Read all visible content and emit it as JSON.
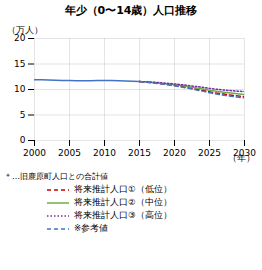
{
  "chart_data": {
    "type": "line",
    "title": "年少（0〜14歳）人口推移",
    "x_label": "（年）",
    "y_label": "（万人）",
    "annotations": [
      "＊…旧鹿原町人口との合計値"
    ],
    "x": [
      2000,
      2001,
      2002,
      2003,
      2004,
      2005,
      2006,
      2007,
      2008,
      2009,
      2010,
      2011,
      2012,
      2013,
      2014,
      2015,
      2016,
      2017,
      2018,
      2019,
      2020,
      2021,
      2022,
      2023,
      2024,
      2025,
      2026,
      2027,
      2028,
      2029,
      2030
    ],
    "series": [
      {
        "color": "#4472c4",
        "line_style": "solid",
        "values": [
          11.9,
          11.9,
          11.85,
          11.8,
          11.78,
          11.75,
          11.72,
          11.7,
          11.72,
          11.75,
          11.78,
          11.75,
          11.7,
          11.65,
          11.6,
          11.55,
          null,
          null,
          null,
          null,
          null,
          null,
          null,
          null,
          null,
          null,
          null,
          null,
          null,
          null,
          null
        ]
      },
      {
        "name": "将来推計人口①（低位）",
        "color": "#c00000",
        "line_style": "dashed",
        "values": [
          null,
          null,
          null,
          null,
          null,
          null,
          null,
          null,
          null,
          null,
          null,
          null,
          null,
          null,
          null,
          11.55,
          11.45,
          11.3,
          11.15,
          11.0,
          10.8,
          10.6,
          10.35,
          10.1,
          9.85,
          9.55,
          9.3,
          9.1,
          8.9,
          8.75,
          8.6
        ]
      },
      {
        "name": "将来推計人口②（中位）",
        "color": "#70ad47",
        "line_style": "solid",
        "values": [
          null,
          null,
          null,
          null,
          null,
          null,
          null,
          null,
          null,
          null,
          null,
          null,
          null,
          null,
          null,
          11.55,
          11.47,
          11.35,
          11.22,
          11.1,
          10.95,
          10.77,
          10.55,
          10.32,
          10.1,
          9.85,
          9.65,
          9.47,
          9.3,
          9.15,
          9.0
        ]
      },
      {
        "name": "将来推計人口③（高位）",
        "color": "#7030a0",
        "line_style": "dotted",
        "values": [
          null,
          null,
          null,
          null,
          null,
          null,
          null,
          null,
          null,
          null,
          null,
          null,
          null,
          null,
          null,
          11.55,
          11.5,
          11.42,
          11.32,
          11.22,
          11.1,
          10.95,
          10.78,
          10.6,
          10.42,
          10.22,
          10.05,
          9.9,
          9.78,
          9.68,
          9.6
        ]
      },
      {
        "name": "※参考値",
        "color": "#4472c4",
        "line_style": "dashed",
        "values": [
          null,
          null,
          null,
          null,
          null,
          null,
          null,
          null,
          null,
          null,
          null,
          null,
          null,
          null,
          null,
          11.55,
          11.43,
          11.28,
          11.12,
          10.95,
          10.72,
          10.5,
          10.22,
          9.95,
          9.68,
          9.38,
          9.1,
          8.88,
          8.68,
          8.52,
          8.35
        ]
      }
    ],
    "xlim": [
      2000,
      2030
    ],
    "xticks": [
      2000,
      2005,
      2010,
      2015,
      2020,
      2025,
      2030
    ],
    "ylim": [
      0,
      20
    ],
    "yticks": [
      0,
      5,
      10,
      15,
      20
    ],
    "grid": true,
    "legend": "bottom"
  }
}
